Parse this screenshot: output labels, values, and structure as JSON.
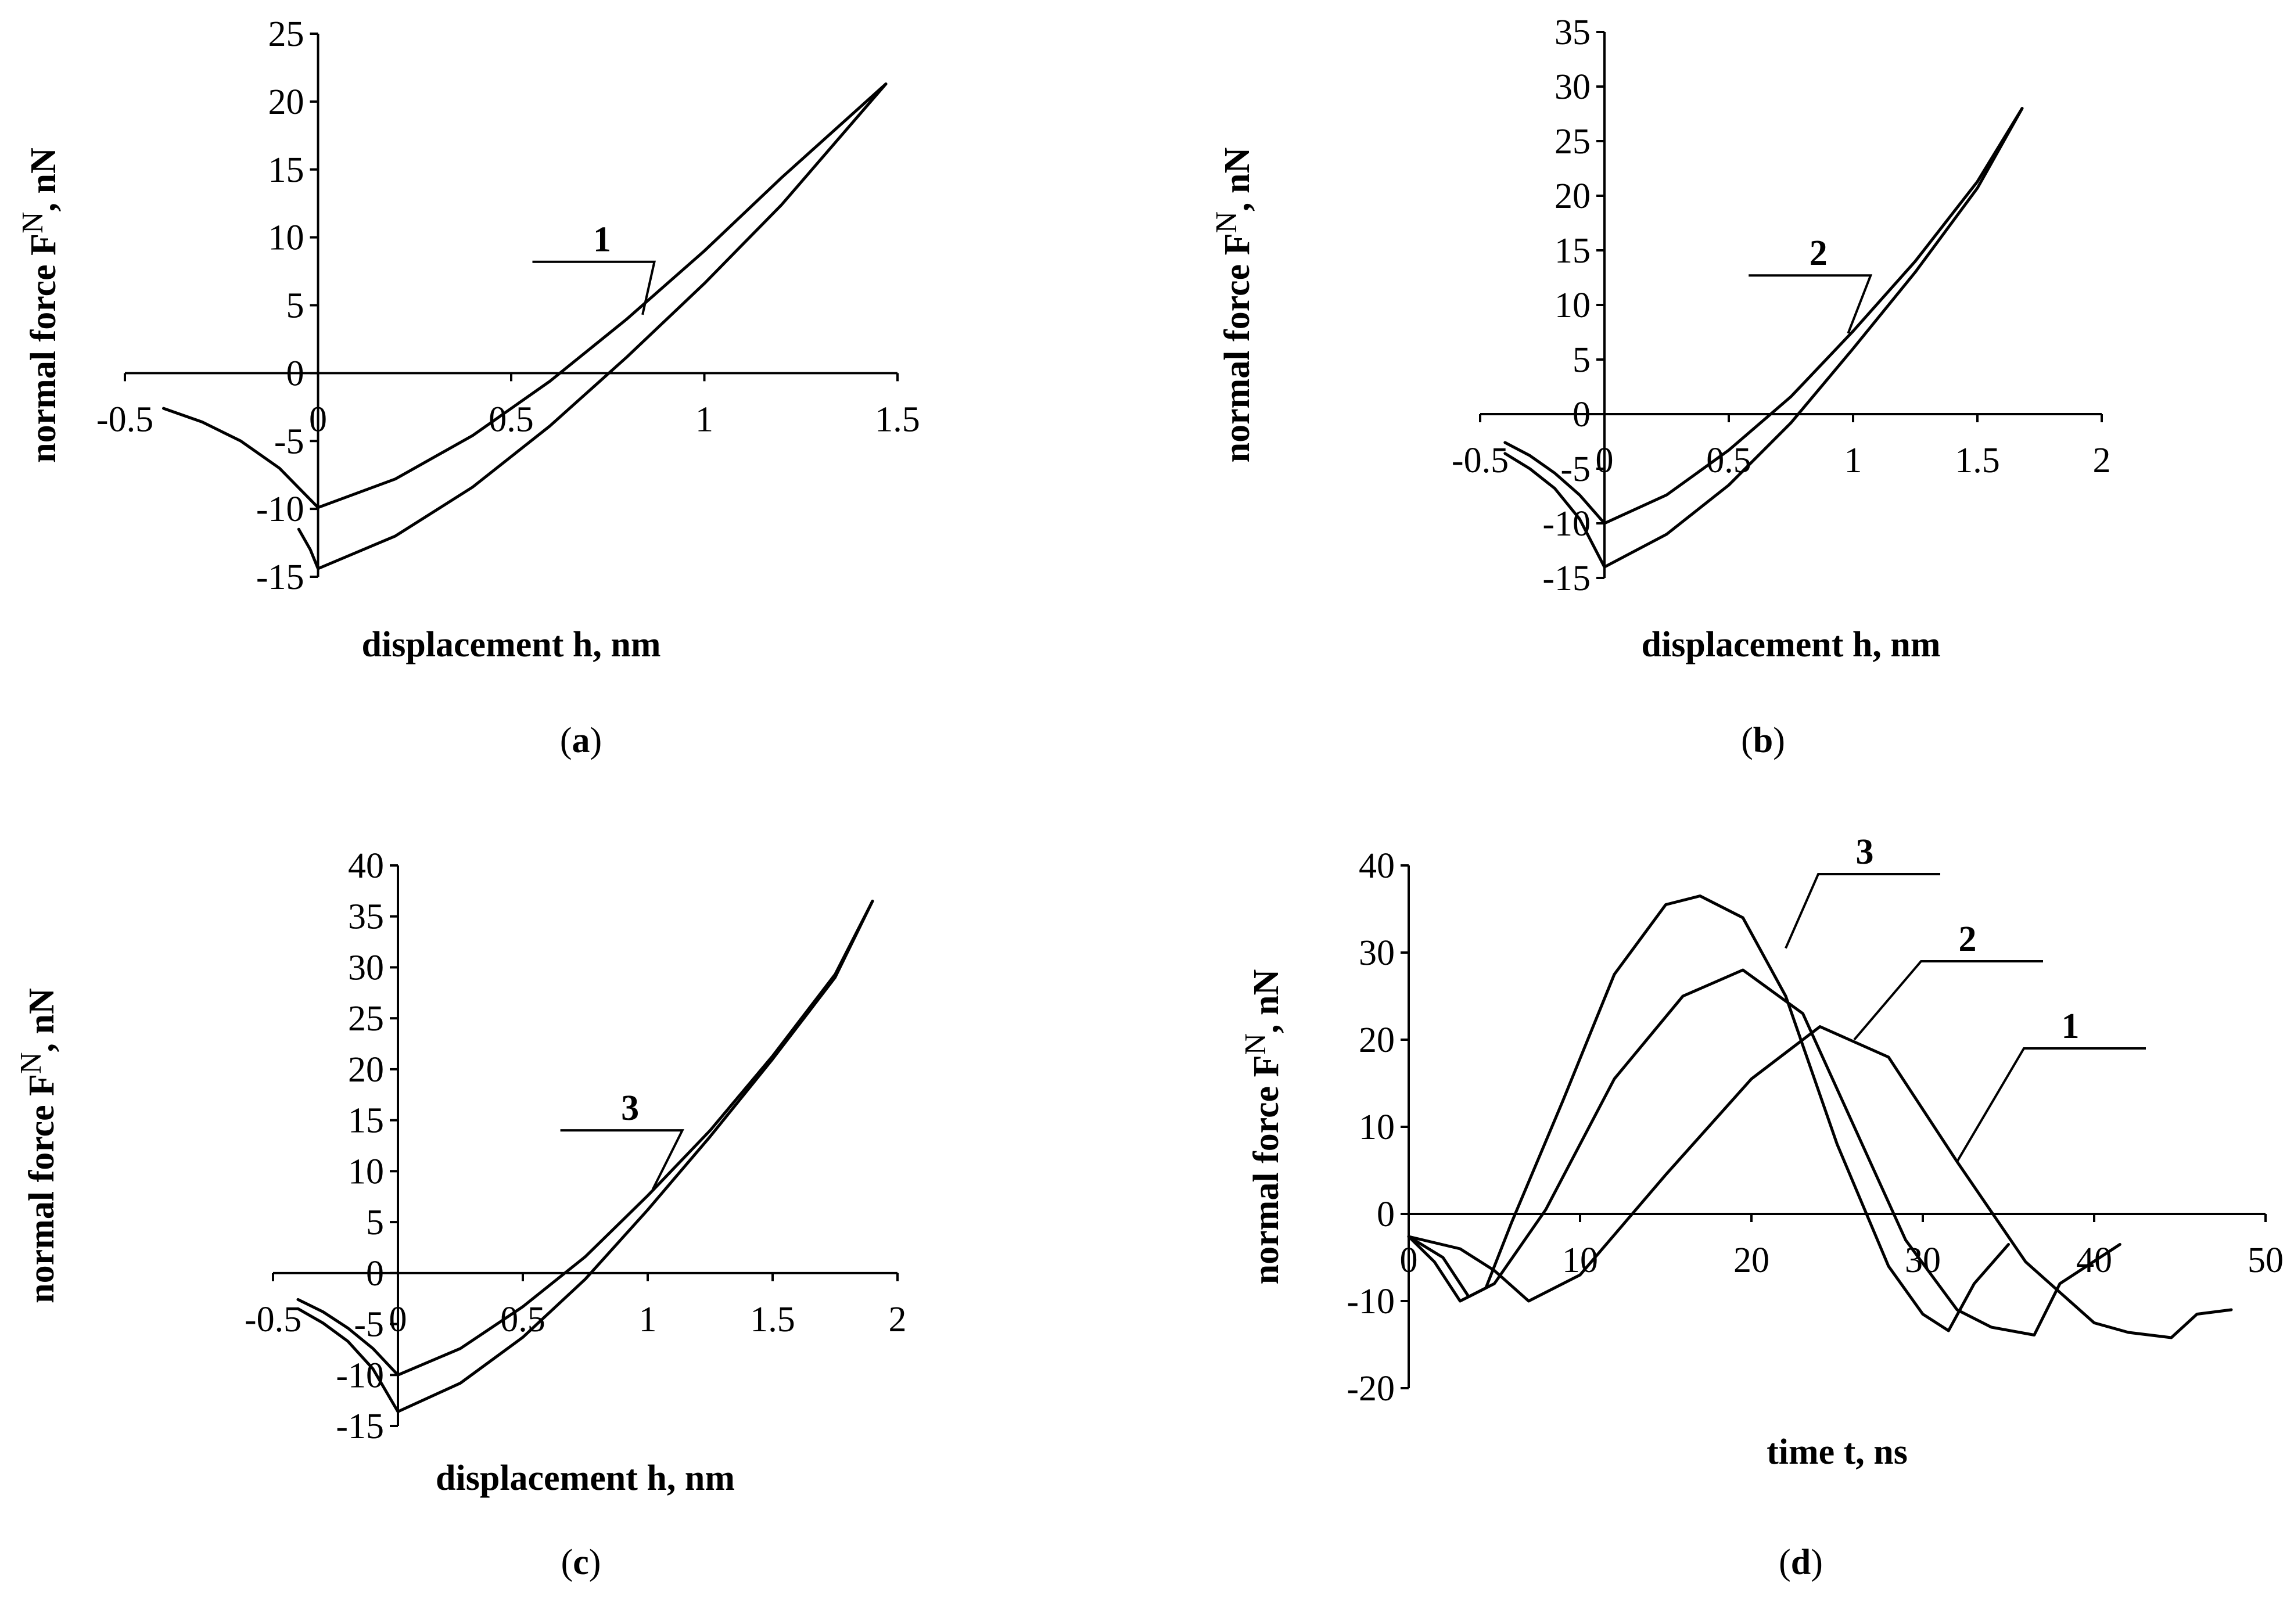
{
  "chart_data": [
    {
      "type": "line",
      "panel_label_prefix": "(",
      "panel_label": "a",
      "panel_label_suffix": ")",
      "xlabel": "displacement h, nm",
      "ylabel": "normal force F",
      "ylabel_sup": "N",
      "ylabel_unit": ", nN",
      "xlim": [
        -0.5,
        1.5
      ],
      "ylim": [
        -15,
        25
      ],
      "xticks": [
        "-0.5",
        "0",
        "0.5",
        "1",
        "1.5"
      ],
      "yticks": [
        "-15",
        "-10",
        "-5",
        "0",
        "5",
        "10",
        "15",
        "20",
        "25"
      ],
      "series": [
        {
          "x": [
            -0.4,
            -0.3,
            -0.2,
            -0.1,
            0,
            0.2,
            0.4,
            0.6,
            0.8,
            1.0,
            1.2,
            1.47
          ],
          "y": [
            -2.6,
            -3.6,
            -5.0,
            -7.0,
            -9.9,
            -7.8,
            -4.6,
            -0.6,
            4.0,
            9.0,
            14.4,
            21.3
          ]
        },
        {
          "x": [
            -0.05,
            -0.02,
            0,
            0.2,
            0.4,
            0.6,
            0.8,
            1.0,
            1.2,
            1.47
          ],
          "y": [
            -11.5,
            -13.0,
            -14.4,
            -12.0,
            -8.4,
            -3.9,
            1.2,
            6.6,
            12.4,
            21.3
          ]
        }
      ],
      "annotations": [
        {
          "text": "1",
          "x": 0.6,
          "y": 8.2,
          "point_x": 0.84,
          "point_y": 4.3
        }
      ]
    },
    {
      "type": "line",
      "panel_label_prefix": "(",
      "panel_label": "b",
      "panel_label_suffix": ")",
      "xlabel": "displacement h, nm",
      "ylabel": "normal force F",
      "ylabel_sup": "N",
      "ylabel_unit": ", nN",
      "xlim": [
        -0.5,
        2
      ],
      "ylim": [
        -15,
        35
      ],
      "xticks": [
        "-0.5",
        "0",
        "0.5",
        "1",
        "1.5",
        "2"
      ],
      "yticks": [
        "-15",
        "-10",
        "-5",
        "0",
        "5",
        "10",
        "15",
        "20",
        "25",
        "30",
        "35"
      ],
      "series": [
        {
          "x": [
            -0.4,
            -0.3,
            -0.2,
            -0.1,
            0,
            0.25,
            0.5,
            0.75,
            1.0,
            1.25,
            1.5,
            1.68
          ],
          "y": [
            -2.6,
            -3.8,
            -5.4,
            -7.4,
            -10.0,
            -7.4,
            -3.3,
            1.6,
            7.6,
            14.0,
            21.3,
            28.0
          ]
        },
        {
          "x": [
            -0.4,
            -0.3,
            -0.2,
            -0.1,
            0,
            0.25,
            0.5,
            0.75,
            1.0,
            1.25,
            1.5,
            1.68
          ],
          "y": [
            -3.6,
            -5.0,
            -6.8,
            -9.6,
            -14.0,
            -11.0,
            -6.5,
            -0.8,
            6.0,
            13.0,
            20.7,
            28.0
          ]
        }
      ],
      "annotations": [
        {
          "text": "2",
          "x": 0.65,
          "y": 12.7,
          "point_x": 0.98,
          "point_y": 7.4
        }
      ]
    },
    {
      "type": "line",
      "panel_label_prefix": "(",
      "panel_label": "c",
      "panel_label_suffix": ")",
      "xlabel": "displacement h, nm",
      "ylabel": "normal force F",
      "ylabel_sup": "N",
      "ylabel_unit": ", nN",
      "xlim": [
        -0.5,
        2
      ],
      "ylim": [
        -15,
        40
      ],
      "xticks": [
        "-0.5",
        "0",
        "0.5",
        "1",
        "1.5",
        "2"
      ],
      "yticks": [
        "-15",
        "-10",
        "-5",
        "0",
        "5",
        "10",
        "15",
        "20",
        "25",
        "30",
        "35",
        "40"
      ],
      "series": [
        {
          "x": [
            -0.4,
            -0.3,
            -0.2,
            -0.1,
            0,
            0.25,
            0.5,
            0.75,
            1.0,
            1.25,
            1.5,
            1.75,
            1.9
          ],
          "y": [
            -2.6,
            -3.8,
            -5.4,
            -7.4,
            -10.0,
            -7.4,
            -3.3,
            1.6,
            7.6,
            14.0,
            21.3,
            29.3,
            36.5
          ]
        },
        {
          "x": [
            -0.4,
            -0.3,
            -0.2,
            -0.1,
            0,
            0.25,
            0.5,
            0.75,
            1.0,
            1.25,
            1.5,
            1.75,
            1.9
          ],
          "y": [
            -3.5,
            -4.9,
            -6.7,
            -9.4,
            -13.6,
            -10.8,
            -6.3,
            -0.6,
            6.2,
            13.4,
            21.0,
            29.0,
            36.5
          ]
        }
      ],
      "annotations": [
        {
          "text": "3",
          "x": 0.72,
          "y": 14.0,
          "point_x": 1.02,
          "point_y": 8.2
        }
      ]
    },
    {
      "type": "line",
      "panel_label_prefix": "(",
      "panel_label": "d",
      "panel_label_suffix": ")",
      "xlabel": "time t, ns",
      "ylabel": "normal force F",
      "ylabel_sup": "N",
      "ylabel_unit": ", nN",
      "xlim": [
        0,
        50
      ],
      "ylim": [
        -20,
        40
      ],
      "xticks": [
        "0",
        "10",
        "20",
        "30",
        "40",
        "50"
      ],
      "yticks": [
        "-20",
        "-10",
        "0",
        "10",
        "20",
        "30",
        "40"
      ],
      "series": [
        {
          "x": [
            0,
            3,
            5,
            7,
            10,
            15,
            20,
            24,
            28,
            32,
            36,
            40,
            42,
            44.5,
            46,
            48
          ],
          "y": [
            -2.6,
            -4.0,
            -6.5,
            -10.0,
            -7.0,
            4.5,
            15.5,
            21.5,
            18.0,
            6.0,
            -5.5,
            -12.5,
            -13.6,
            -14.2,
            -11.5,
            -11.0
          ]
        },
        {
          "x": [
            0,
            2,
            3.5,
            5,
            8,
            12,
            16,
            19.5,
            23,
            26,
            29,
            32,
            34,
            36.5,
            38,
            41.5
          ],
          "y": [
            -2.6,
            -5.0,
            -9.5,
            -8.0,
            0.5,
            15.5,
            25.0,
            28.0,
            23.0,
            10.0,
            -3.0,
            -11.0,
            -13.0,
            -13.9,
            -8.0,
            -3.5
          ]
        },
        {
          "x": [
            0,
            1.5,
            3,
            4.5,
            6,
            9,
            12,
            15,
            17,
            19.5,
            22,
            25,
            28,
            30,
            31.5,
            33,
            35
          ],
          "y": [
            -2.6,
            -5.5,
            -10.0,
            -8.5,
            -1.0,
            13.0,
            27.5,
            35.5,
            36.5,
            34.0,
            25.0,
            8.0,
            -6.0,
            -11.5,
            -13.4,
            -8.0,
            -3.5
          ]
        }
      ],
      "annotations": [
        {
          "text": "1",
          "x": 42,
          "y": 19.0,
          "point_x": 32,
          "point_y": 6.0
        },
        {
          "text": "2",
          "x": 36,
          "y": 29.0,
          "point_x": 26,
          "point_y": 20.0
        },
        {
          "text": "3",
          "x": 30,
          "y": 39.0,
          "point_x": 22,
          "point_y": 30.5
        }
      ]
    }
  ]
}
